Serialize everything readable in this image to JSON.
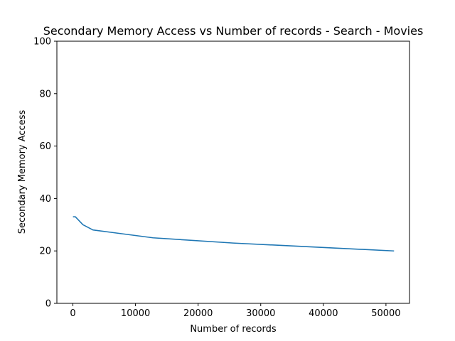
{
  "chart_data": {
    "type": "line",
    "title": "Secondary Memory Access vs Number of records - Search - Movies",
    "xlabel": "Number of records",
    "ylabel": "Secondary Memory Access",
    "xlim": [
      -2560,
      53760
    ],
    "ylim": [
      0,
      100
    ],
    "xticks": [
      0,
      10000,
      20000,
      30000,
      40000,
      50000
    ],
    "yticks": [
      0,
      20,
      40,
      60,
      80,
      100
    ],
    "grid": false,
    "series": [
      {
        "color": "#1f77b4",
        "x": [
          100,
          400,
          1600,
          3200,
          6400,
          12800,
          25600,
          51200
        ],
        "y": [
          33,
          33,
          30,
          28,
          27,
          25,
          23,
          20
        ]
      }
    ]
  }
}
